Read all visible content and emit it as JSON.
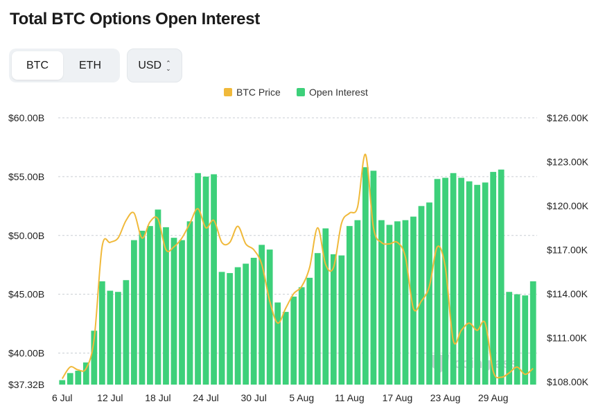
{
  "page": {
    "title": "Total BTC Options Open Interest"
  },
  "controls": {
    "assets": [
      {
        "label": "BTC",
        "active": true
      },
      {
        "label": "ETH",
        "active": false
      }
    ],
    "currency": "USD"
  },
  "colors": {
    "bar": "#3dd07a",
    "price": "#f0b93a",
    "grid": "#c9ced3",
    "watermark": "#cfd3d6"
  },
  "watermark": "coinglass",
  "chart_data": {
    "type": "bar",
    "title": "Total BTC Options Open Interest",
    "legend_position": "top-center",
    "grid": true,
    "legend": [
      {
        "name": "BTC Price",
        "color": "#f0b93a"
      },
      {
        "name": "Open Interest",
        "color": "#3dd07a"
      }
    ],
    "left_axis": {
      "min": 37.32,
      "max": 60.0,
      "ticks": [
        {
          "value": 60.0,
          "label": "$60.00B"
        },
        {
          "value": 55.0,
          "label": "$55.00B"
        },
        {
          "value": 50.0,
          "label": "$50.00B"
        },
        {
          "value": 45.0,
          "label": "$45.00B"
        },
        {
          "value": 40.0,
          "label": "$40.00B"
        },
        {
          "value": 37.32,
          "label": "$37.32B"
        }
      ]
    },
    "right_axis": {
      "min": 107.8,
      "max": 126.0,
      "ticks": [
        {
          "value": 126.0,
          "label": "$126.00K"
        },
        {
          "value": 123.0,
          "label": "$123.00K"
        },
        {
          "value": 120.0,
          "label": "$120.00K"
        },
        {
          "value": 117.0,
          "label": "$117.00K"
        },
        {
          "value": 114.0,
          "label": "$114.00K"
        },
        {
          "value": 111.0,
          "label": "$111.00K"
        },
        {
          "value": 108.0,
          "label": "$108.00K"
        }
      ]
    },
    "x_ticks": [
      {
        "index": 0,
        "label": "6 Jul"
      },
      {
        "index": 6,
        "label": "12 Jul"
      },
      {
        "index": 12,
        "label": "18 Jul"
      },
      {
        "index": 18,
        "label": "24 Jul"
      },
      {
        "index": 24,
        "label": "30 Jul"
      },
      {
        "index": 30,
        "label": "5 Aug"
      },
      {
        "index": 36,
        "label": "11 Aug"
      },
      {
        "index": 42,
        "label": "17 Aug"
      },
      {
        "index": 48,
        "label": "23 Aug"
      },
      {
        "index": 54,
        "label": "29 Aug"
      }
    ],
    "series": [
      {
        "name": "Open Interest",
        "axis": "left",
        "unit": "B USD",
        "values": [
          37.7,
          38.3,
          38.5,
          39.2,
          41.9,
          46.1,
          45.3,
          45.2,
          46.2,
          49.6,
          50.4,
          50.8,
          52.2,
          50.7,
          49.8,
          49.6,
          51.2,
          55.3,
          55.0,
          55.2,
          46.9,
          46.8,
          47.3,
          47.6,
          48.1,
          49.2,
          48.8,
          44.3,
          43.5,
          44.8,
          45.6,
          46.4,
          48.5,
          50.6,
          48.4,
          48.3,
          50.8,
          51.3,
          55.8,
          55.5,
          51.3,
          50.9,
          51.2,
          51.3,
          51.6,
          52.5,
          52.8,
          54.8,
          54.9,
          55.3,
          54.9,
          54.6,
          54.3,
          54.5,
          55.4,
          55.6,
          45.2,
          45.0,
          44.9,
          46.1
        ]
      },
      {
        "name": "BTC Price",
        "axis": "right",
        "unit": "K USD",
        "values": [
          108.2,
          109.0,
          108.8,
          108.9,
          110.9,
          117.2,
          117.5,
          117.8,
          119.0,
          119.5,
          117.8,
          118.9,
          119.1,
          117.0,
          117.2,
          117.8,
          118.8,
          119.8,
          118.5,
          119.0,
          117.5,
          117.5,
          118.6,
          117.4,
          117.0,
          116.0,
          113.5,
          112.0,
          113.0,
          114.0,
          114.5,
          115.8,
          118.5,
          116.0,
          115.8,
          118.8,
          119.5,
          119.9,
          123.5,
          118.5,
          117.5,
          117.4,
          117.5,
          116.5,
          113.0,
          113.5,
          114.5,
          117.2,
          115.8,
          110.8,
          111.5,
          112.0,
          111.5,
          112.0,
          108.7,
          108.3,
          108.6,
          109.0,
          108.5,
          108.9
        ]
      }
    ]
  }
}
